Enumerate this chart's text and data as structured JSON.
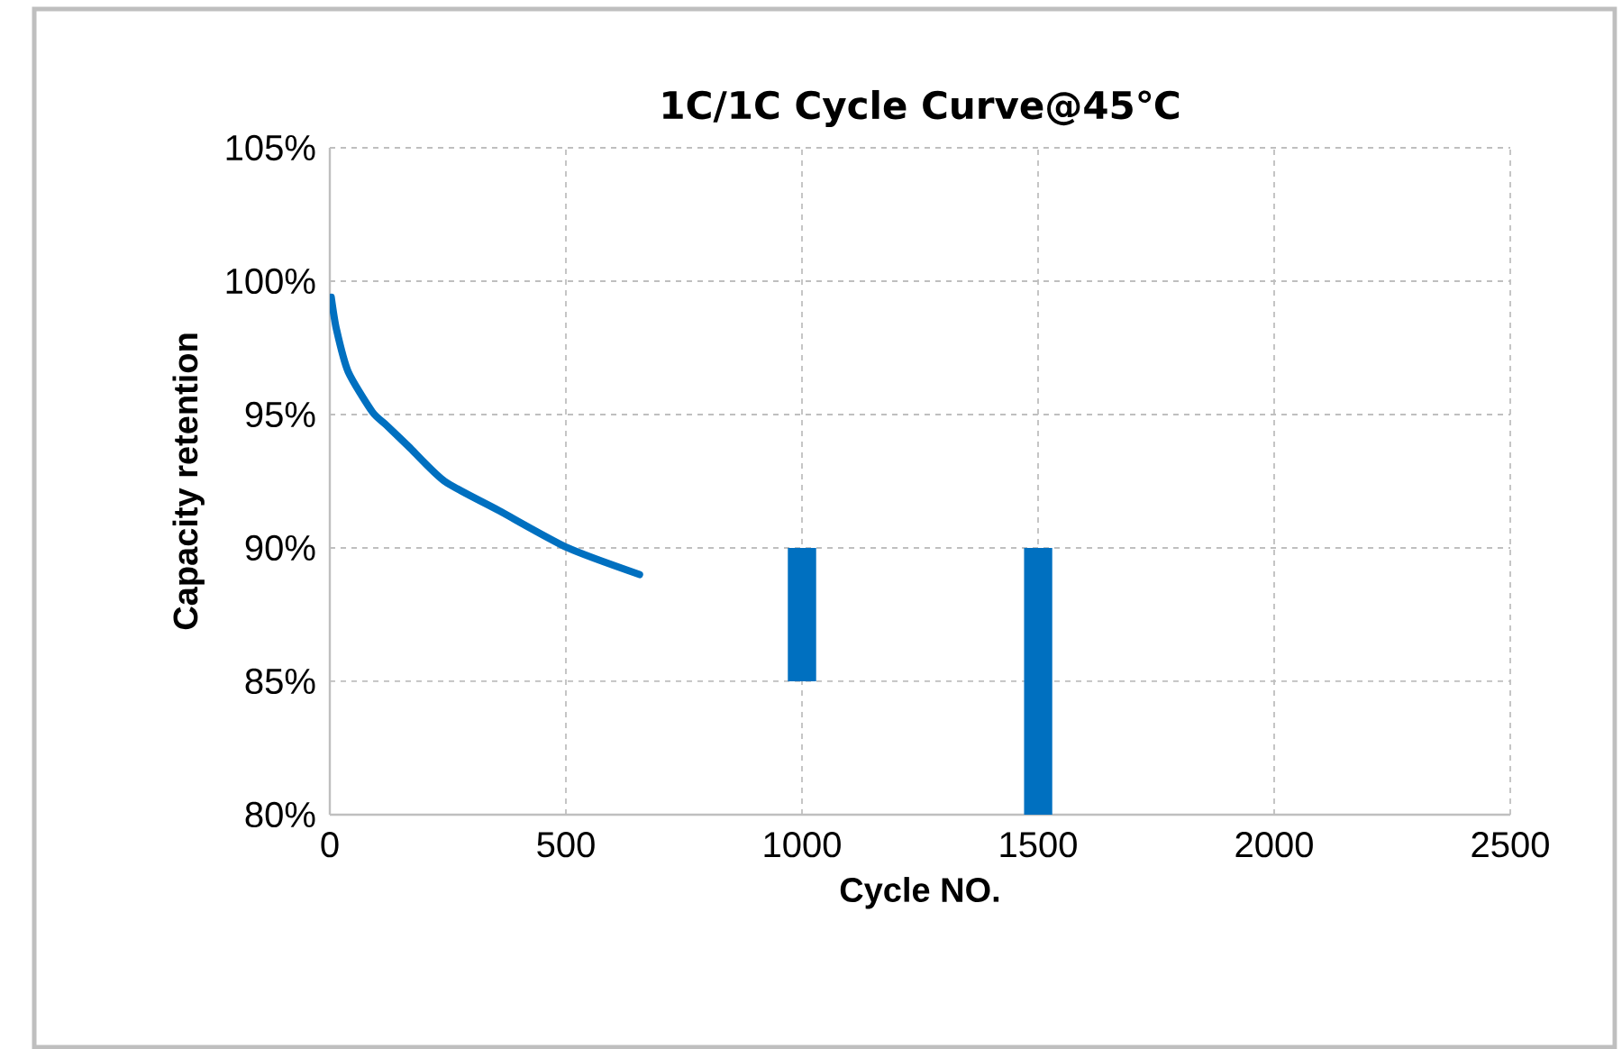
{
  "chart_data": {
    "type": "line",
    "title": "1C/1C Cycle Curve@45℃",
    "xlabel": "Cycle NO.",
    "ylabel": "Capacity retention",
    "xlim": [
      0,
      2500
    ],
    "xticks": [
      0,
      500,
      1000,
      1500,
      2000,
      2500
    ],
    "ylim": [
      80,
      105
    ],
    "yticks": [
      {
        "value": 80,
        "label": "80%"
      },
      {
        "value": 85,
        "label": "85%"
      },
      {
        "value": 90,
        "label": "90%"
      },
      {
        "value": 95,
        "label": "95%"
      },
      {
        "value": 100,
        "label": "100%"
      },
      {
        "value": 105,
        "label": "105%"
      }
    ],
    "grid": true,
    "legend": false,
    "line_style": "solid",
    "marker": "none",
    "series": [
      {
        "color": "#0070c0",
        "x": [
          3,
          14,
          39,
          90,
          120,
          167,
          243,
          358,
          504,
          656
        ],
        "values": [
          99.4,
          98.2,
          96.6,
          95.1,
          94.6,
          93.8,
          92.5,
          91.4,
          90.0,
          89.0
        ]
      },
      {
        "type": "bar",
        "color": "#0070c0",
        "x": [
          1000,
          1500
        ],
        "base": [
          85,
          80
        ],
        "values": [
          5,
          10
        ]
      }
    ]
  }
}
